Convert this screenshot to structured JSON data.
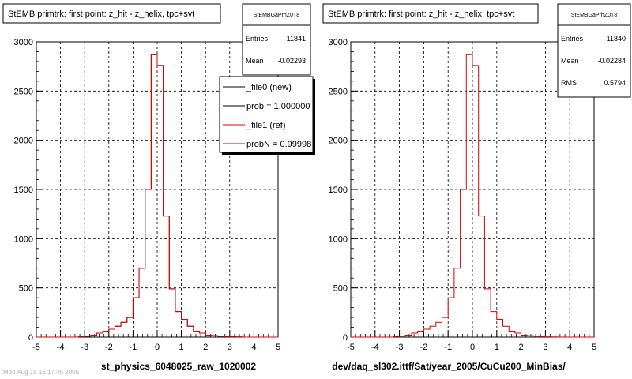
{
  "chart_data": [
    {
      "type": "line",
      "title": "StEMB primtrk: first point: z_hit - z_helix, tpc+svt",
      "xlabel": "st_physics_6048025_raw_1020002",
      "ylabel": "",
      "xlim": [
        -5,
        5
      ],
      "ylim": [
        0,
        3000
      ],
      "x_ticks": [
        "-5",
        "-4",
        "-3",
        "-2",
        "-1",
        "0",
        "1",
        "2",
        "3",
        "4",
        "5"
      ],
      "y_ticks": [
        "0",
        "500",
        "1000",
        "1500",
        "2000",
        "2500",
        "3000"
      ],
      "grid": true,
      "bin_edges": [
        -5,
        -4.75,
        -4.5,
        -4.25,
        -4,
        -3.75,
        -3.5,
        -3.25,
        -3,
        -2.75,
        -2.5,
        -2.25,
        -2,
        -1.75,
        -1.5,
        -1.25,
        -1,
        -0.75,
        -0.5,
        -0.25,
        0,
        0.25,
        0.5,
        0.75,
        1,
        1.25,
        1.5,
        1.75,
        2,
        2.25,
        2.5,
        2.75,
        3,
        3.25,
        3.5,
        3.75,
        4,
        4.25,
        4.5,
        4.75,
        5
      ],
      "series": [
        {
          "name": "_file0 (new)",
          "color": "#000000",
          "values": [
            0,
            0,
            0,
            0,
            0,
            0,
            0,
            5,
            10,
            20,
            40,
            60,
            80,
            110,
            150,
            200,
            400,
            700,
            1500,
            2870,
            2760,
            1230,
            490,
            260,
            180,
            110,
            60,
            40,
            20,
            15,
            10,
            5,
            3,
            2,
            0,
            0,
            0,
            0,
            0,
            0
          ]
        },
        {
          "name": "_file1 (ref)",
          "color": "#dd0000",
          "values": [
            0,
            0,
            0,
            0,
            0,
            0,
            0,
            5,
            10,
            20,
            40,
            60,
            80,
            110,
            150,
            200,
            400,
            700,
            1500,
            2870,
            2760,
            1230,
            490,
            260,
            180,
            110,
            60,
            40,
            20,
            15,
            10,
            5,
            3,
            2,
            0,
            0,
            0,
            0,
            0,
            0
          ]
        }
      ],
      "stats_box": {
        "name": "StEMBGaPrhZ0T8",
        "entries_label": "Entries",
        "entries": "11841",
        "mean_label": "Mean",
        "mean": "-0.02293"
      },
      "legend": {
        "placement": "top-right",
        "entries": [
          {
            "label": "_file0 (new)",
            "color": "#000000"
          },
          {
            "label": "prob = 1.000000",
            "color": "#000000"
          },
          {
            "label": "_file1 (ref)",
            "color": "#dd0000"
          },
          {
            "label": "probN = 0.99998",
            "color": "#dd0000"
          }
        ]
      }
    },
    {
      "type": "line",
      "title": "StEMB primtrk: first point: z_hit - z_helix, tpc+svt",
      "xlabel": "dev/daq_sl302.ittf/Sat/year_2005/CuCu200_MinBias/",
      "ylabel": "",
      "xlim": [
        -5,
        5
      ],
      "ylim": [
        0,
        3000
      ],
      "x_ticks": [
        "-5",
        "-4",
        "-3",
        "-2",
        "-1",
        "0",
        "1",
        "2",
        "3",
        "4",
        "5"
      ],
      "y_ticks": [
        "0",
        "500",
        "1000",
        "1500",
        "2000",
        "2500",
        "3000"
      ],
      "grid": true,
      "bin_edges": [
        -5,
        -4.75,
        -4.5,
        -4.25,
        -4,
        -3.75,
        -3.5,
        -3.25,
        -3,
        -2.75,
        -2.5,
        -2.25,
        -2,
        -1.75,
        -1.5,
        -1.25,
        -1,
        -0.75,
        -0.5,
        -0.25,
        0,
        0.25,
        0.5,
        0.75,
        1,
        1.25,
        1.5,
        1.75,
        2,
        2.25,
        2.5,
        2.75,
        3,
        3.25,
        3.5,
        3.75,
        4,
        4.25,
        4.5,
        4.75,
        5
      ],
      "series": [
        {
          "color": "#dd0000",
          "values": [
            0,
            0,
            0,
            0,
            0,
            0,
            0,
            5,
            10,
            20,
            40,
            60,
            80,
            110,
            150,
            200,
            400,
            700,
            1500,
            2870,
            2760,
            1230,
            490,
            260,
            180,
            110,
            60,
            40,
            20,
            15,
            10,
            5,
            3,
            2,
            0,
            0,
            0,
            0,
            0,
            0
          ]
        }
      ],
      "stats_box": {
        "name": "StEMBGaPrhZ0T8",
        "entries_label": "Entries",
        "entries": "11840",
        "mean_label": "Mean",
        "mean": "-0.02284",
        "rms_label": "RMS",
        "rms": "0.5794"
      }
    }
  ],
  "footer": {
    "text": "Mon Aug 15 16:17:45 2005"
  }
}
